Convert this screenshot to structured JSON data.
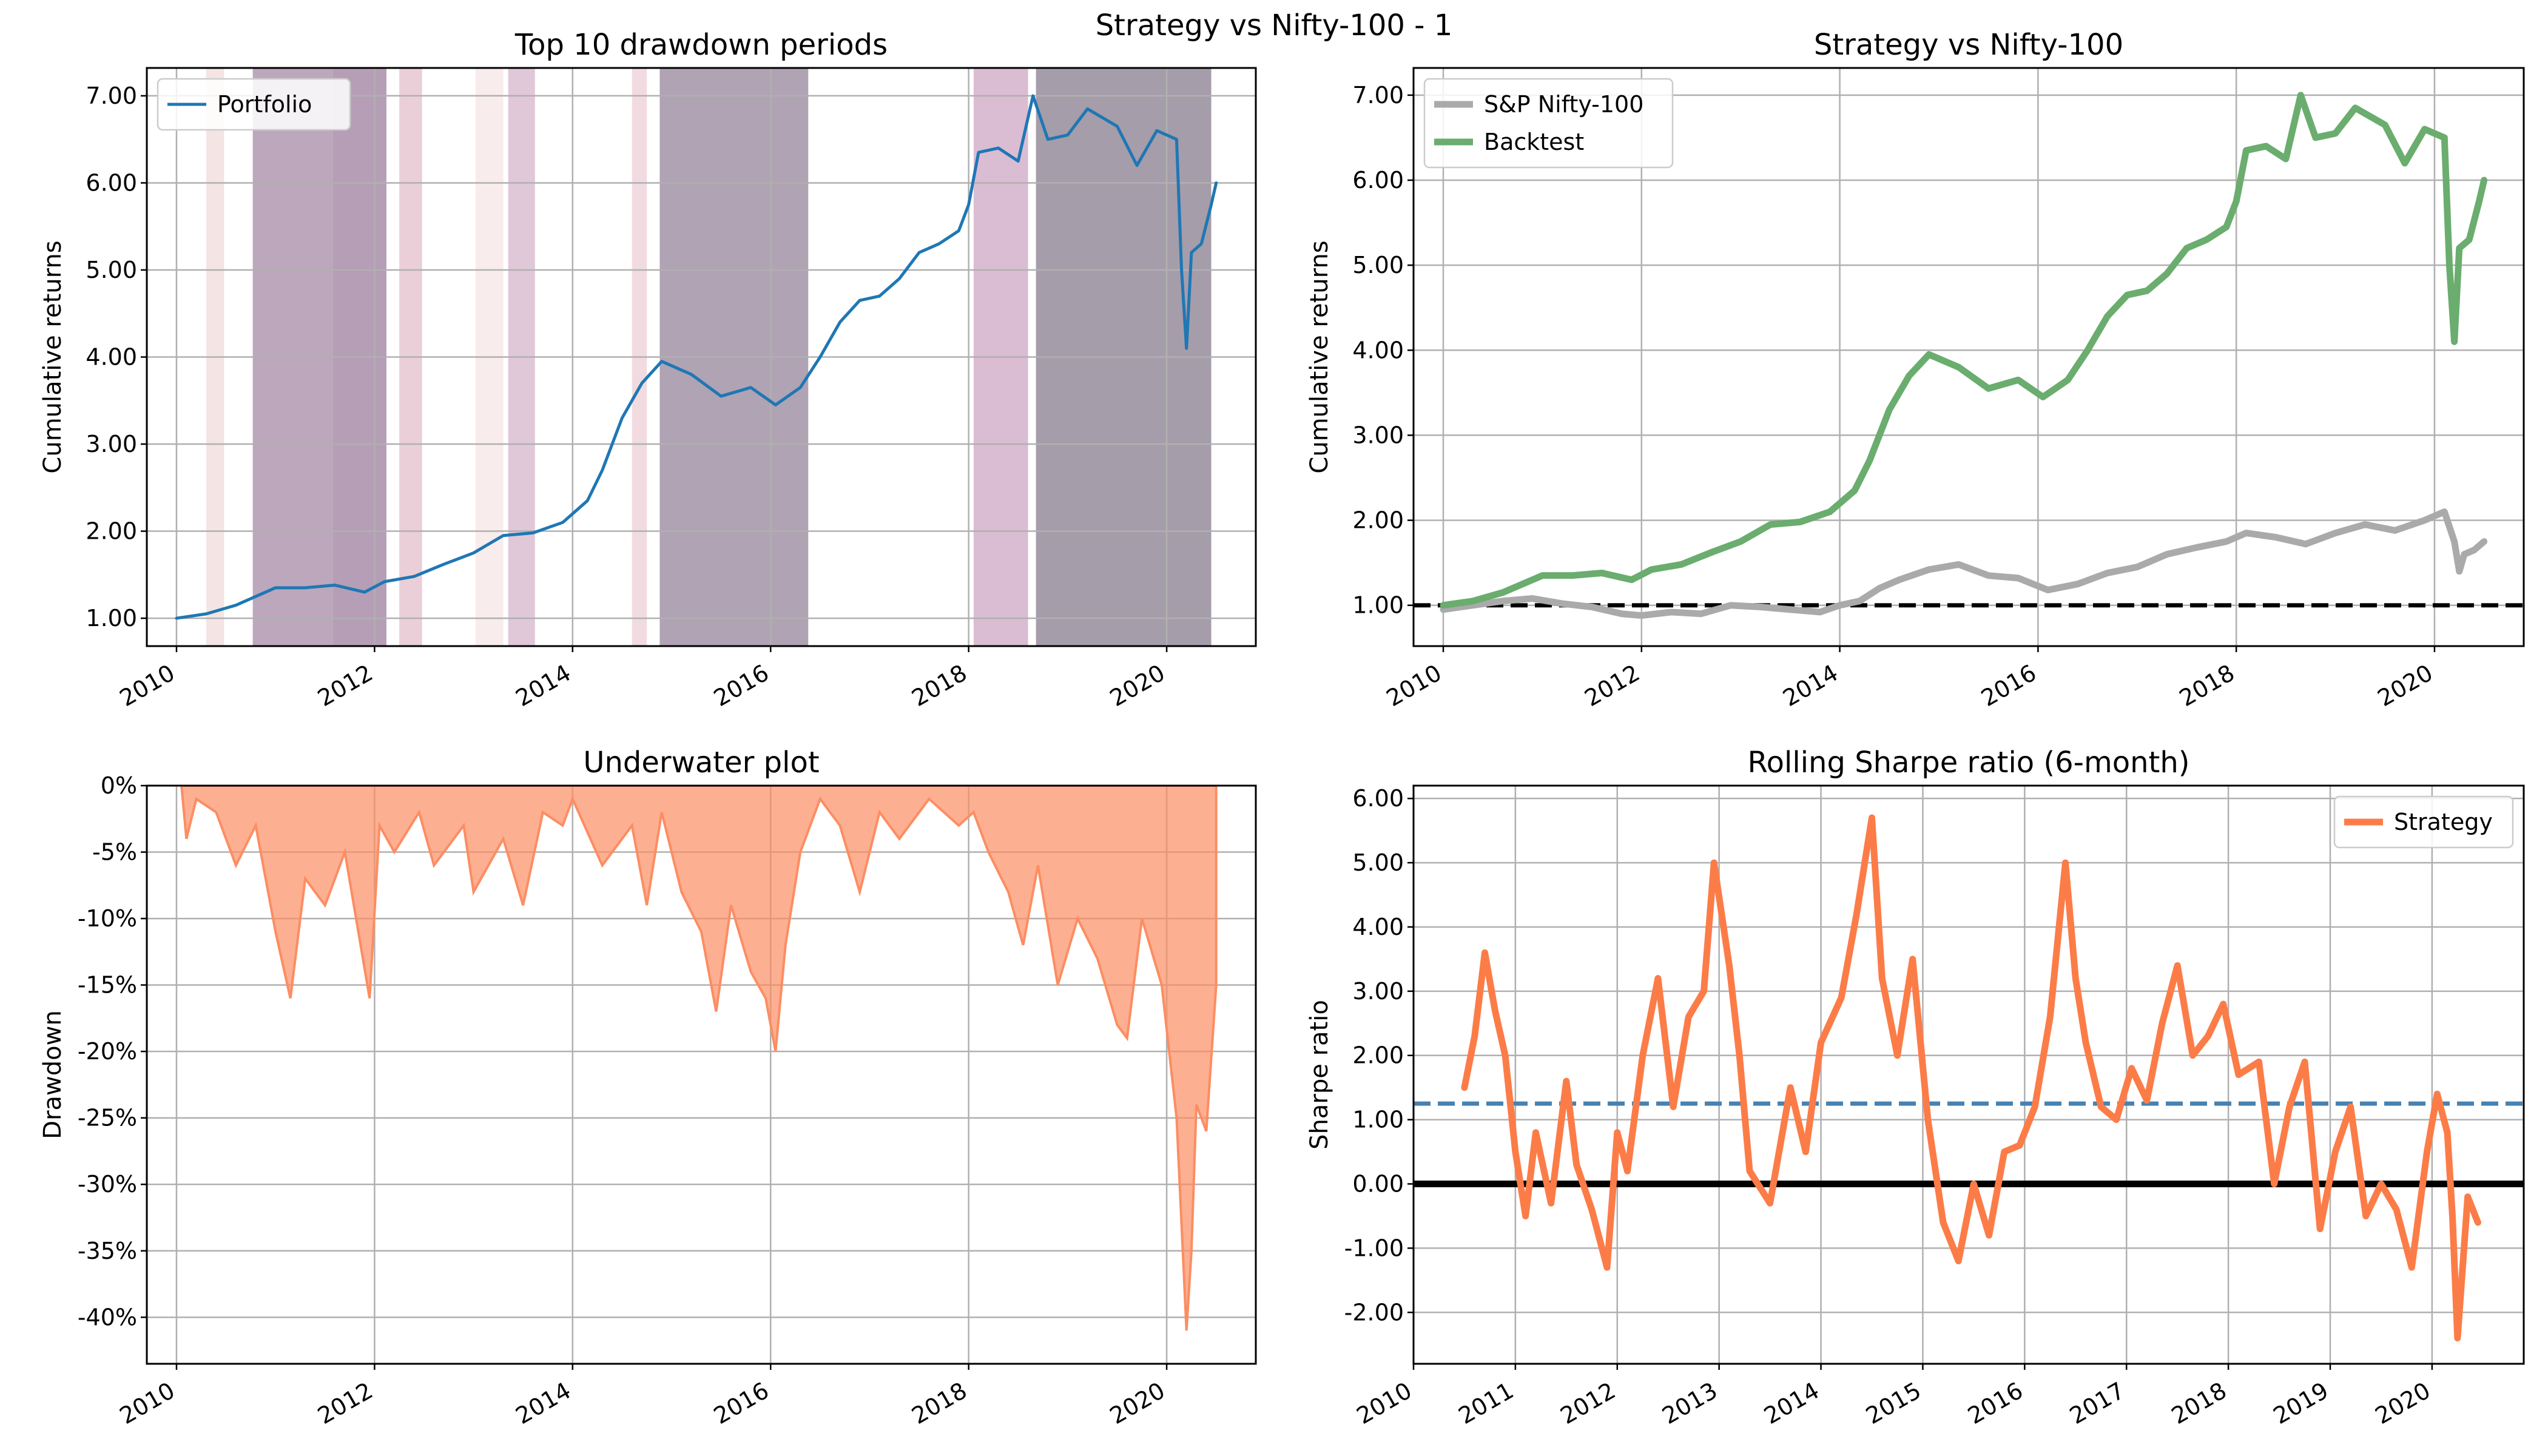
{
  "figure": {
    "suptitle": "Strategy vs Nifty-100 - 1"
  },
  "chart_data": [
    {
      "id": "drawdown_periods",
      "type": "line",
      "title": "Top 10 drawdown periods",
      "xlabel": "",
      "ylabel": "Cumulative returns",
      "xlim": [
        2009.7,
        2020.9
      ],
      "ylim": [
        0.68,
        7.32
      ],
      "xticks": [
        2010,
        2012,
        2014,
        2016,
        2018,
        2020
      ],
      "xtick_labels": [
        "2010",
        "2012",
        "2014",
        "2016",
        "2018",
        "2020"
      ],
      "yticks": [
        1,
        2,
        3,
        4,
        5,
        6,
        7
      ],
      "ytick_labels": [
        "1.00",
        "2.00",
        "3.00",
        "4.00",
        "5.00",
        "6.00",
        "7.00"
      ],
      "grid": true,
      "legend": {
        "position": "top-left",
        "entries": [
          "Portfolio"
        ]
      },
      "series": [
        {
          "name": "Portfolio",
          "color": "#1f77b4",
          "x": [
            2010.0,
            2010.3,
            2010.6,
            2010.8,
            2011.0,
            2011.3,
            2011.6,
            2011.9,
            2012.1,
            2012.4,
            2012.7,
            2013.0,
            2013.3,
            2013.6,
            2013.9,
            2014.15,
            2014.3,
            2014.5,
            2014.7,
            2014.9,
            2015.2,
            2015.5,
            2015.8,
            2016.05,
            2016.3,
            2016.5,
            2016.7,
            2016.9,
            2017.1,
            2017.3,
            2017.5,
            2017.7,
            2017.9,
            2018.0,
            2018.1,
            2018.3,
            2018.5,
            2018.65,
            2018.8,
            2019.0,
            2019.2,
            2019.5,
            2019.7,
            2019.9,
            2020.1,
            2020.15,
            2020.2,
            2020.25,
            2020.35,
            2020.45,
            2020.5
          ],
          "y": [
            1.0,
            1.05,
            1.15,
            1.25,
            1.35,
            1.35,
            1.38,
            1.3,
            1.42,
            1.48,
            1.62,
            1.75,
            1.95,
            1.98,
            2.1,
            2.35,
            2.7,
            3.3,
            3.7,
            3.95,
            3.8,
            3.55,
            3.65,
            3.45,
            3.65,
            4.0,
            4.4,
            4.65,
            4.7,
            4.9,
            5.2,
            5.3,
            5.45,
            5.75,
            6.35,
            6.4,
            6.25,
            7.0,
            6.5,
            6.55,
            6.85,
            6.65,
            6.2,
            6.6,
            6.5,
            5.0,
            4.1,
            5.2,
            5.3,
            5.75,
            6.0
          ]
        }
      ],
      "drawdown_periods": [
        {
          "start": 2010.3,
          "end": 2010.48,
          "color": "#e9c9c9",
          "opacity": 0.5
        },
        {
          "start": 2010.77,
          "end": 2011.58,
          "color": "#7a4f7c",
          "opacity": 0.5
        },
        {
          "start": 2011.58,
          "end": 2012.12,
          "color": "#7a4f7c",
          "opacity": 0.55
        },
        {
          "start": 2012.25,
          "end": 2012.48,
          "color": "#d8a8b8",
          "opacity": 0.55
        },
        {
          "start": 2013.02,
          "end": 2013.3,
          "color": "#f1d9d9",
          "opacity": 0.5
        },
        {
          "start": 2013.35,
          "end": 2013.62,
          "color": "#c79ab8",
          "opacity": 0.55
        },
        {
          "start": 2014.6,
          "end": 2014.75,
          "color": "#e4b8c4",
          "opacity": 0.5
        },
        {
          "start": 2014.88,
          "end": 2016.38,
          "color": "#6e5776",
          "opacity": 0.55
        },
        {
          "start": 2018.05,
          "end": 2018.6,
          "color": "#b57ba6",
          "opacity": 0.5
        },
        {
          "start": 2018.68,
          "end": 2020.45,
          "color": "#5b4c65",
          "opacity": 0.55
        }
      ]
    },
    {
      "id": "strategy_vs_benchmark",
      "type": "line",
      "title": "Strategy vs Nifty-100",
      "xlabel": "",
      "ylabel": "Cumulative returns",
      "xlim": [
        2009.7,
        2020.9
      ],
      "ylim": [
        0.52,
        7.32
      ],
      "xticks": [
        2010,
        2012,
        2014,
        2016,
        2018,
        2020
      ],
      "xtick_labels": [
        "2010",
        "2012",
        "2014",
        "2016",
        "2018",
        "2020"
      ],
      "yticks": [
        1,
        2,
        3,
        4,
        5,
        6,
        7
      ],
      "ytick_labels": [
        "1.00",
        "2.00",
        "3.00",
        "4.00",
        "5.00",
        "6.00",
        "7.00"
      ],
      "grid": true,
      "hline": {
        "y": 1.0,
        "color": "#000000",
        "style": "dashed"
      },
      "legend": {
        "position": "top-left",
        "entries": [
          "S&P Nifty-100",
          "Backtest"
        ]
      },
      "series": [
        {
          "name": "S&P Nifty-100",
          "color": "#aaaaaa",
          "x": [
            2010.0,
            2010.3,
            2010.6,
            2010.9,
            2011.2,
            2011.5,
            2011.8,
            2012.0,
            2012.3,
            2012.6,
            2012.9,
            2013.2,
            2013.5,
            2013.8,
            2014.0,
            2014.2,
            2014.4,
            2014.6,
            2014.9,
            2015.2,
            2015.5,
            2015.8,
            2016.1,
            2016.4,
            2016.7,
            2017.0,
            2017.3,
            2017.6,
            2017.9,
            2018.1,
            2018.4,
            2018.7,
            2019.0,
            2019.3,
            2019.6,
            2019.9,
            2020.1,
            2020.2,
            2020.25,
            2020.3,
            2020.4,
            2020.5
          ],
          "y": [
            0.95,
            1.0,
            1.05,
            1.08,
            1.02,
            0.98,
            0.9,
            0.88,
            0.92,
            0.9,
            1.0,
            0.98,
            0.95,
            0.92,
            1.0,
            1.05,
            1.2,
            1.3,
            1.42,
            1.48,
            1.35,
            1.32,
            1.18,
            1.25,
            1.38,
            1.45,
            1.6,
            1.68,
            1.75,
            1.85,
            1.8,
            1.72,
            1.85,
            1.95,
            1.88,
            2.0,
            2.1,
            1.75,
            1.4,
            1.6,
            1.65,
            1.75
          ]
        },
        {
          "name": "Backtest",
          "color": "#6aad6e",
          "x": [
            2010.0,
            2010.3,
            2010.6,
            2010.8,
            2011.0,
            2011.3,
            2011.6,
            2011.9,
            2012.1,
            2012.4,
            2012.7,
            2013.0,
            2013.3,
            2013.6,
            2013.9,
            2014.15,
            2014.3,
            2014.5,
            2014.7,
            2014.9,
            2015.2,
            2015.5,
            2015.8,
            2016.05,
            2016.3,
            2016.5,
            2016.7,
            2016.9,
            2017.1,
            2017.3,
            2017.5,
            2017.7,
            2017.9,
            2018.0,
            2018.1,
            2018.3,
            2018.5,
            2018.65,
            2018.8,
            2019.0,
            2019.2,
            2019.5,
            2019.7,
            2019.9,
            2020.1,
            2020.15,
            2020.2,
            2020.25,
            2020.35,
            2020.45,
            2020.5
          ],
          "y": [
            1.0,
            1.05,
            1.15,
            1.25,
            1.35,
            1.35,
            1.38,
            1.3,
            1.42,
            1.48,
            1.62,
            1.75,
            1.95,
            1.98,
            2.1,
            2.35,
            2.7,
            3.3,
            3.7,
            3.95,
            3.8,
            3.55,
            3.65,
            3.45,
            3.65,
            4.0,
            4.4,
            4.65,
            4.7,
            4.9,
            5.2,
            5.3,
            5.45,
            5.75,
            6.35,
            6.4,
            6.25,
            7.0,
            6.5,
            6.55,
            6.85,
            6.65,
            6.2,
            6.6,
            6.5,
            5.0,
            4.1,
            5.2,
            5.3,
            5.75,
            6.0
          ]
        }
      ]
    },
    {
      "id": "underwater",
      "type": "area",
      "title": "Underwater plot",
      "xlabel": "",
      "ylabel": "Drawdown",
      "xlim": [
        2009.7,
        2020.9
      ],
      "ylim": [
        -43.5,
        0
      ],
      "xticks": [
        2010,
        2012,
        2014,
        2016,
        2018,
        2020
      ],
      "xtick_labels": [
        "2010",
        "2012",
        "2014",
        "2016",
        "2018",
        "2020"
      ],
      "yticks": [
        0,
        -5,
        -10,
        -15,
        -20,
        -25,
        -30,
        -35,
        -40
      ],
      "ytick_labels": [
        "0%",
        "-5%",
        "-10%",
        "-15%",
        "-20%",
        "-25%",
        "-30%",
        "-35%",
        "-40%"
      ],
      "grid": true,
      "series": [
        {
          "name": "",
          "color": "#fc8d62",
          "x": [
            2010.05,
            2010.1,
            2010.2,
            2010.4,
            2010.6,
            2010.8,
            2011.0,
            2011.15,
            2011.3,
            2011.5,
            2011.7,
            2011.95,
            2012.05,
            2012.2,
            2012.45,
            2012.6,
            2012.9,
            2013.0,
            2013.3,
            2013.5,
            2013.7,
            2013.9,
            2014.0,
            2014.3,
            2014.6,
            2014.75,
            2014.9,
            2015.1,
            2015.3,
            2015.45,
            2015.6,
            2015.8,
            2015.95,
            2016.05,
            2016.15,
            2016.3,
            2016.5,
            2016.7,
            2016.9,
            2017.1,
            2017.3,
            2017.6,
            2017.9,
            2018.05,
            2018.2,
            2018.4,
            2018.55,
            2018.7,
            2018.9,
            2019.1,
            2019.3,
            2019.5,
            2019.6,
            2019.75,
            2019.95,
            2020.1,
            2020.2,
            2020.25,
            2020.3,
            2020.4,
            2020.5
          ],
          "y": [
            0,
            -4,
            -1,
            -2,
            -6,
            -3,
            -11,
            -16,
            -7,
            -9,
            -5,
            -16,
            -3,
            -5,
            -2,
            -6,
            -3,
            -8,
            -4,
            -9,
            -2,
            -3,
            -1,
            -6,
            -3,
            -9,
            -2,
            -8,
            -11,
            -17,
            -9,
            -14,
            -16,
            -20,
            -12,
            -5,
            -1,
            -3,
            -8,
            -2,
            -4,
            -1,
            -3,
            -2,
            -5,
            -8,
            -12,
            -6,
            -15,
            -10,
            -13,
            -18,
            -19,
            -10,
            -15,
            -25,
            -41,
            -35,
            -24,
            -26,
            -15
          ]
        }
      ]
    },
    {
      "id": "rolling_sharpe",
      "type": "line",
      "title": "Rolling Sharpe ratio (6-month)",
      "xlabel": "",
      "ylabel": "Sharpe ratio",
      "xlim": [
        2010.0,
        2020.9
      ],
      "ylim": [
        -2.8,
        6.2
      ],
      "xticks": [
        2010,
        2011,
        2012,
        2013,
        2014,
        2015,
        2016,
        2017,
        2018,
        2019,
        2020
      ],
      "xtick_labels": [
        "2010",
        "2011",
        "2012",
        "2013",
        "2014",
        "2015",
        "2016",
        "2017",
        "2018",
        "2019",
        "2020"
      ],
      "yticks": [
        6,
        5,
        4,
        3,
        2,
        1,
        0,
        -1,
        -2
      ],
      "ytick_labels": [
        "6.00",
        "5.00",
        "4.00",
        "3.00",
        "2.00",
        "1.00",
        "0.00",
        "-1.00",
        "-2.00"
      ],
      "grid": true,
      "hlines": [
        {
          "y": 1.25,
          "color": "#4682b4",
          "style": "dashed"
        },
        {
          "y": 0.0,
          "color": "#000000",
          "style": "solid"
        }
      ],
      "legend": {
        "position": "top-right",
        "entries": [
          "Strategy"
        ]
      },
      "series": [
        {
          "name": "Strategy",
          "color": "#fc7c48",
          "x": [
            2010.5,
            2010.6,
            2010.7,
            2010.8,
            2010.9,
            2011.0,
            2011.1,
            2011.2,
            2011.35,
            2011.5,
            2011.6,
            2011.75,
            2011.9,
            2012.0,
            2012.1,
            2012.25,
            2012.4,
            2012.55,
            2012.7,
            2012.85,
            2012.95,
            2013.1,
            2013.2,
            2013.3,
            2013.5,
            2013.7,
            2013.85,
            2014.0,
            2014.2,
            2014.35,
            2014.5,
            2014.6,
            2014.75,
            2014.9,
            2015.05,
            2015.2,
            2015.35,
            2015.5,
            2015.65,
            2015.8,
            2015.95,
            2016.1,
            2016.25,
            2016.4,
            2016.5,
            2016.6,
            2016.75,
            2016.9,
            2017.05,
            2017.2,
            2017.35,
            2017.5,
            2017.65,
            2017.8,
            2017.95,
            2018.1,
            2018.3,
            2018.45,
            2018.6,
            2018.75,
            2018.9,
            2019.05,
            2019.2,
            2019.35,
            2019.5,
            2019.65,
            2019.8,
            2019.95,
            2020.05,
            2020.15,
            2020.2,
            2020.25,
            2020.35,
            2020.45
          ],
          "y": [
            1.5,
            2.3,
            3.6,
            2.7,
            2.0,
            0.5,
            -0.5,
            0.8,
            -0.3,
            1.6,
            0.3,
            -0.4,
            -1.3,
            0.8,
            0.2,
            2.0,
            3.2,
            1.2,
            2.6,
            3.0,
            5.0,
            3.4,
            2.0,
            0.2,
            -0.3,
            1.5,
            0.5,
            2.2,
            2.9,
            4.2,
            5.7,
            3.2,
            2.0,
            3.5,
            1.0,
            -0.6,
            -1.2,
            0.0,
            -0.8,
            0.5,
            0.6,
            1.2,
            2.6,
            5.0,
            3.2,
            2.2,
            1.2,
            1.0,
            1.8,
            1.3,
            2.5,
            3.4,
            2.0,
            2.3,
            2.8,
            1.7,
            1.9,
            0.0,
            1.2,
            1.9,
            -0.7,
            0.5,
            1.2,
            -0.5,
            0.0,
            -0.4,
            -1.3,
            0.5,
            1.4,
            0.8,
            -0.5,
            -2.4,
            -0.2,
            -0.6
          ]
        }
      ]
    }
  ]
}
